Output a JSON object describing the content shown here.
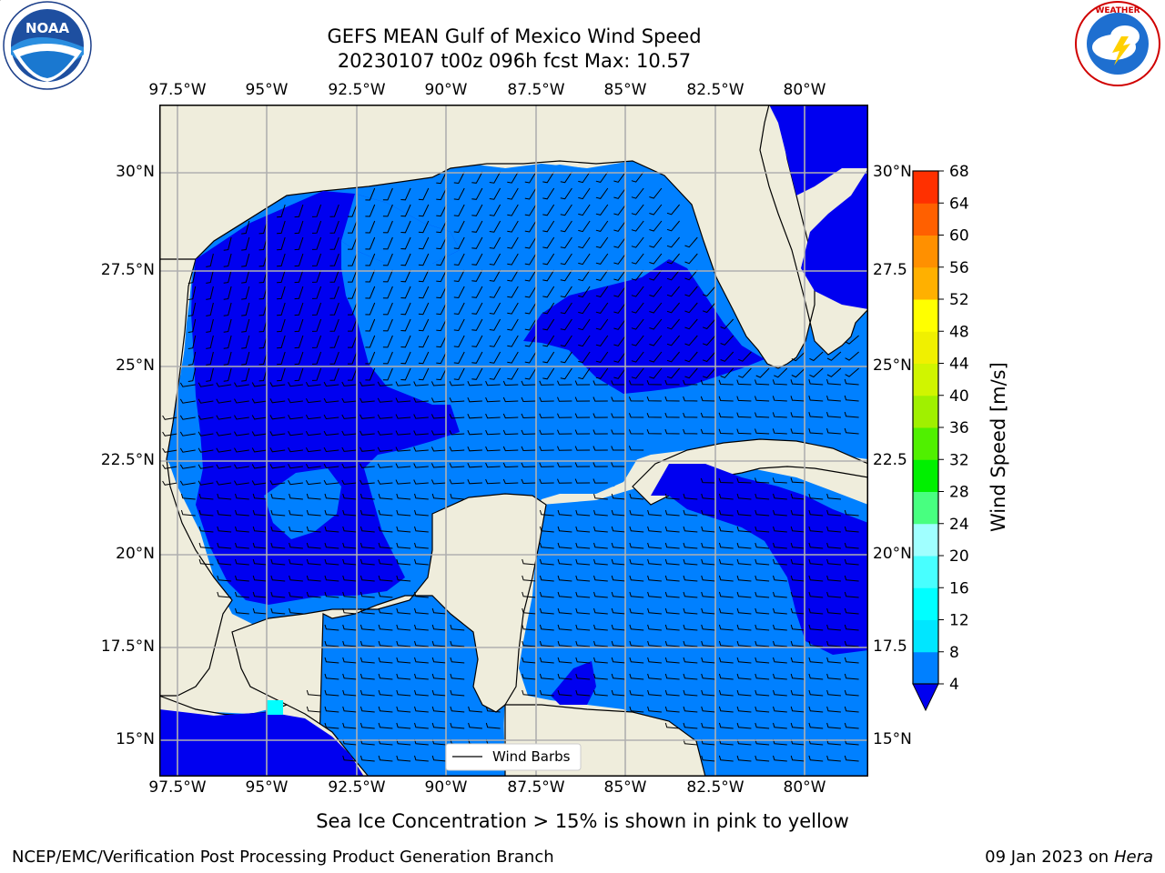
{
  "header": {
    "title_line1": "GEFS MEAN Gulf of Mexico Wind Speed",
    "title_line2": "20230107 t00z 096h fcst   Max: 10.57"
  },
  "logos": {
    "left_text": "NOAA",
    "left_ring_text": "NATIONAL OCEANIC AND ATMOSPHERIC ADMINISTRATION • U.S. DEPARTMENT OF COMMERCE",
    "right_ring_text": "NATIONAL WEATHER SERVICE"
  },
  "map": {
    "lon_labels": [
      "97.5°W",
      "95°W",
      "92.5°W",
      "90°W",
      "87.5°W",
      "85°W",
      "82.5°W",
      "80°W"
    ],
    "lat_labels_left": [
      "30°N",
      "27.5°N",
      "25°N",
      "22.5°N",
      "20°N",
      "17.5°N",
      "15°N"
    ],
    "lat_labels_right": [
      "30°N",
      "27.5",
      "25°N",
      "22.5",
      "20°N",
      "17.5",
      "15°N"
    ],
    "legend_label": "Wind Barbs",
    "colors": {
      "land": "#efeddc",
      "ocean_light": "#0080ff",
      "ocean_dark": "#0000f0",
      "cyan": "#00ffff",
      "grid": "#b0b0b0"
    }
  },
  "colorbar": {
    "label": "Wind Speed [m/s]",
    "ticks": [
      "4",
      "8",
      "12",
      "16",
      "20",
      "24",
      "28",
      "32",
      "36",
      "40",
      "44",
      "48",
      "52",
      "56",
      "60",
      "64",
      "68"
    ],
    "colors": [
      "#0080ff",
      "#00e6ff",
      "#00ffff",
      "#48ffff",
      "#a0ffff",
      "#48ff80",
      "#00f000",
      "#50f000",
      "#a0f000",
      "#d0f500",
      "#f0f000",
      "#ffff00",
      "#ffb000",
      "#ff9000",
      "#ff6000",
      "#ff3000",
      "#ff0000"
    ],
    "under_color": "#0000f0"
  },
  "caption": "Sea Ice Concentration > 15% is shown in pink to yellow",
  "footer": {
    "left": "NCEP/EMC/Verification Post Processing Product Generation Branch",
    "right_date": "09 Jan 2023 on ",
    "right_host": "Hera"
  }
}
